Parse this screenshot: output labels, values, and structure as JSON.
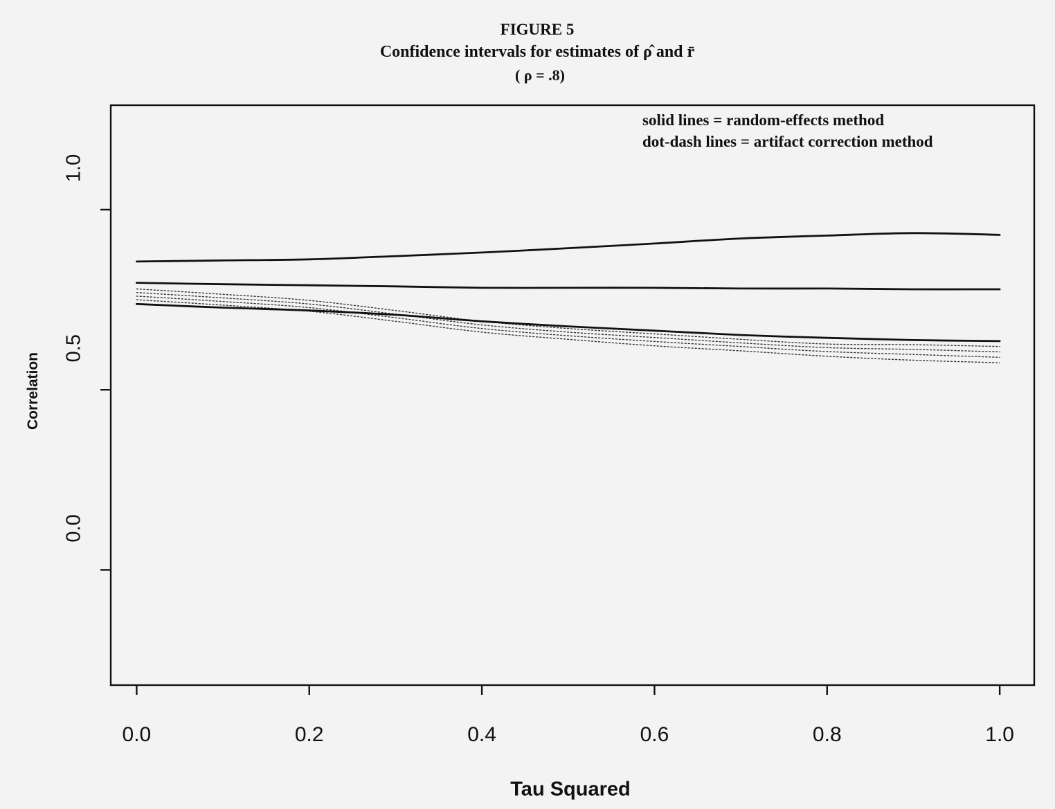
{
  "figure": {
    "number": "FIGURE 5",
    "title": "Confidence intervals for estimates of ρ̂ and r̄",
    "subtitle": "( ρ = .8)"
  },
  "chart_data": {
    "type": "line",
    "xlabel": "Tau Squared",
    "ylabel": "Correlation",
    "xlim": [
      -0.03,
      1.04
    ],
    "ylim": [
      -0.32,
      1.29
    ],
    "x_ticks": [
      "0.0",
      "0.2",
      "0.4",
      "0.6",
      "0.8",
      "1.0"
    ],
    "y_ticks": [
      "0.0",
      "0.5",
      "1.0"
    ],
    "grid": false,
    "legend_position": "top-right",
    "legend_text": [
      "solid lines = random-effects method",
      "dot-dash lines = artifact correction method"
    ],
    "x": [
      0.0,
      0.1,
      0.2,
      0.3,
      0.4,
      0.5,
      0.6,
      0.7,
      0.8,
      0.9,
      1.0
    ],
    "series": [
      {
        "style": "solid",
        "values": [
          0.856,
          0.859,
          0.862,
          0.871,
          0.881,
          0.893,
          0.906,
          0.92,
          0.928,
          0.935,
          0.93
        ]
      },
      {
        "style": "solid",
        "values": [
          0.797,
          0.793,
          0.79,
          0.787,
          0.783,
          0.783,
          0.783,
          0.781,
          0.781,
          0.779,
          0.779
        ]
      },
      {
        "style": "dotted",
        "values": [
          0.78,
          0.765,
          0.748,
          0.72,
          0.69,
          0.67,
          0.655,
          0.64,
          0.627,
          0.625,
          0.62
        ]
      },
      {
        "style": "dotted",
        "values": [
          0.77,
          0.755,
          0.738,
          0.71,
          0.68,
          0.66,
          0.645,
          0.63,
          0.617,
          0.612,
          0.605
        ]
      },
      {
        "style": "dotted",
        "values": [
          0.76,
          0.745,
          0.728,
          0.7,
          0.67,
          0.65,
          0.634,
          0.62,
          0.606,
          0.598,
          0.59
        ]
      },
      {
        "style": "dotted",
        "values": [
          0.75,
          0.735,
          0.718,
          0.69,
          0.66,
          0.64,
          0.622,
          0.608,
          0.593,
          0.582,
          0.575
        ]
      },
      {
        "style": "solid",
        "values": [
          0.738,
          0.728,
          0.72,
          0.708,
          0.69,
          0.676,
          0.664,
          0.652,
          0.644,
          0.638,
          0.635
        ]
      }
    ]
  }
}
